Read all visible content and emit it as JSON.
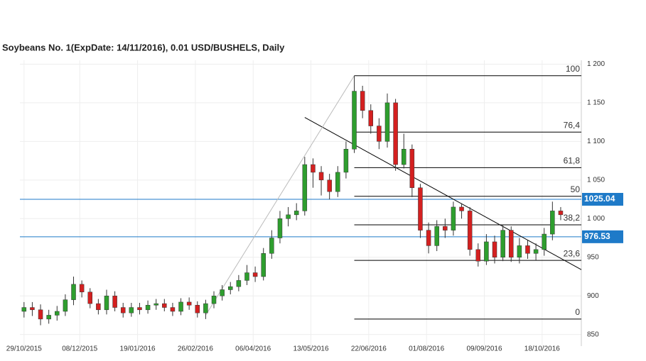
{
  "chart_data": {
    "type": "candlestick",
    "title": "Soybeans  No. 1(ExpDate: 14/11/2016), 0.01 USD/BUSHELS, Daily",
    "x": [
      0,
      4,
      8,
      12,
      16,
      20,
      24,
      28,
      32,
      36,
      40,
      44,
      48,
      52,
      56,
      60,
      64,
      68,
      72,
      76,
      80,
      84,
      88,
      92,
      96,
      100,
      104,
      108,
      112,
      116,
      120,
      124,
      128,
      132,
      136,
      140,
      144,
      148,
      152,
      156,
      160,
      164,
      168,
      172,
      176,
      180,
      184,
      188,
      192,
      196,
      200,
      204,
      208,
      212,
      216,
      220,
      224,
      228,
      232,
      236,
      240,
      244,
      248,
      252,
      256,
      260
    ],
    "series": [
      {
        "open": [
          880,
          885,
          882,
          870,
          875,
          880,
          895,
          915,
          905,
          890,
          882,
          900,
          885,
          878,
          885,
          882,
          888,
          890,
          885,
          880,
          892,
          888,
          878,
          890,
          900,
          908,
          912,
          920,
          930,
          925,
          955,
          975,
          1000,
          1005,
          1010,
          1070,
          1060,
          1050,
          1035,
          1060,
          1090,
          1165,
          1140,
          1120,
          1100,
          1150,
          1070,
          1090,
          1040,
          985,
          965,
          990,
          985,
          1015,
          1010,
          960,
          945,
          970,
          950,
          985,
          950,
          965,
          955,
          960,
          980,
          1010
        ],
        "high": [
          892,
          892,
          889,
          882,
          887,
          902,
          925,
          920,
          910,
          896,
          908,
          906,
          891,
          891,
          891,
          894,
          896,
          896,
          891,
          897,
          898,
          893,
          895,
          906,
          914,
          918,
          927,
          940,
          938,
          962,
          985,
          1010,
          1015,
          1020,
          1080,
          1078,
          1068,
          1058,
          1068,
          1100,
          1185,
          1172,
          1148,
          1130,
          1162,
          1155,
          1110,
          1096,
          1045,
          995,
          998,
          1000,
          1022,
          1020,
          1015,
          968,
          980,
          978,
          992,
          990,
          975,
          972,
          968,
          988,
          1022,
          1015
        ],
        "low": [
          872,
          874,
          862,
          864,
          868,
          874,
          888,
          898,
          884,
          876,
          876,
          880,
          872,
          873,
          876,
          877,
          882,
          880,
          874,
          875,
          882,
          872,
          870,
          884,
          894,
          902,
          906,
          914,
          918,
          920,
          948,
          968,
          990,
          998,
          1004,
          1040,
          1030,
          1025,
          1028,
          1052,
          1085,
          1130,
          1110,
          1090,
          1092,
          1062,
          1065,
          1028,
          975,
          955,
          958,
          975,
          978,
          1000,
          952,
          938,
          940,
          942,
          945,
          944,
          942,
          948,
          946,
          952,
          972,
          998
        ],
        "close": [
          885,
          882,
          870,
          875,
          880,
          895,
          915,
          905,
          890,
          882,
          900,
          885,
          878,
          885,
          882,
          888,
          890,
          885,
          880,
          892,
          888,
          878,
          890,
          900,
          908,
          912,
          920,
          930,
          925,
          955,
          975,
          1000,
          1005,
          1010,
          1070,
          1060,
          1050,
          1035,
          1060,
          1090,
          1165,
          1140,
          1120,
          1100,
          1150,
          1070,
          1090,
          1040,
          985,
          965,
          990,
          985,
          1015,
          1010,
          960,
          945,
          970,
          950,
          985,
          950,
          965,
          955,
          960,
          980,
          1010,
          1005
        ],
        "up_color": "#2e9e2e",
        "down_color": "#d42020"
      }
    ],
    "xlim": [
      -2,
      270
    ],
    "xticks": [
      {
        "value": 0,
        "label": "29/10/2015"
      },
      {
        "value": 27,
        "label": "08/12/2015"
      },
      {
        "value": 55,
        "label": "19/01/2016"
      },
      {
        "value": 83,
        "label": "26/02/2016"
      },
      {
        "value": 111,
        "label": "06/04/2016"
      },
      {
        "value": 139,
        "label": "13/05/2016"
      },
      {
        "value": 167,
        "label": "22/06/2016"
      },
      {
        "value": 195,
        "label": "01/08/2016"
      },
      {
        "value": 223,
        "label": "09/09/2016"
      },
      {
        "value": 251,
        "label": "18/10/2016"
      }
    ],
    "ylim": [
      835,
      1205
    ],
    "yticks": [
      850,
      900,
      950,
      {
        "value": 1000,
        "label": "1 000"
      },
      {
        "value": 1050,
        "label": "1 050"
      },
      {
        "value": 1100,
        "label": "1 100"
      },
      {
        "value": 1150,
        "label": "1 150"
      },
      {
        "value": 1200,
        "label": "1 200"
      }
    ],
    "grid": true,
    "fibonacci": {
      "start": 160,
      "color": "#000000",
      "levels": [
        {
          "label": "100",
          "value": 1185
        },
        {
          "label": "76,4",
          "value": 1112
        },
        {
          "label": "61,8",
          "value": 1066
        },
        {
          "label": "50",
          "value": 1029
        },
        {
          "label": "38,2",
          "value": 992
        },
        {
          "label": "23,6",
          "value": 946
        },
        {
          "label": "0",
          "value": 870
        }
      ]
    },
    "trendlines": [
      {
        "x": [
          136,
          270
        ],
        "y": [
          1131,
          934
        ],
        "color": "#000000"
      },
      {
        "x": [
          88,
          160
        ],
        "y": [
          875,
          1185
        ],
        "color": "#bbbbbb"
      }
    ],
    "price_lines": [
      {
        "value": 1025.04,
        "color": "#1e7ac8"
      },
      {
        "value": 976.53,
        "color": "#1e7ac8"
      }
    ]
  }
}
